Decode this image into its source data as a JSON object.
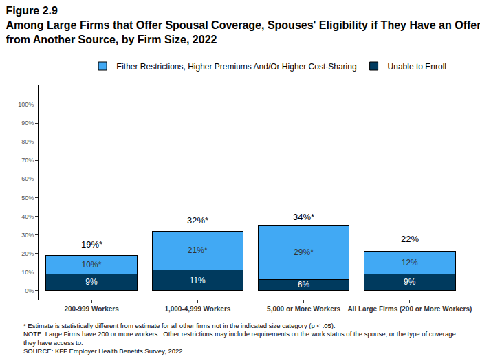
{
  "chart_data": {
    "type": "bar",
    "title": "Figure 2.9",
    "subtitle": [
      "Among Large Firms that Offer Spousal Coverage, Spouses' Eligibility if They Have an Offer",
      "from Another Source, by Firm Size, 2022"
    ],
    "categories": [
      "200-999 Workers",
      "1,000-4,999 Workers",
      "5,000 or More Workers",
      "All Large Firms (200 or More Workers)"
    ],
    "series": [
      {
        "name": "Unable to Enroll",
        "color": "#003a5e",
        "values": [
          9,
          11,
          6,
          9
        ],
        "value_labels": [
          "9%",
          "11%",
          "6%",
          "9%"
        ]
      },
      {
        "name": "Either Restrictions, Higher Premiums And/Or Higher Cost-Sharing",
        "color": "#41a9f4",
        "values": [
          10,
          21,
          29,
          12
        ],
        "value_labels": [
          "10%*",
          "21%*",
          "29%*",
          "12%"
        ]
      }
    ],
    "totals": [
      19,
      32,
      34,
      22
    ],
    "total_labels": [
      "19%*",
      "32%*",
      "34%*",
      "22%"
    ],
    "stacked": true,
    "data_labels": true,
    "grid": false,
    "legend": "top",
    "ylim": [
      -5,
      111
    ],
    "yticks": [
      {
        "value": 0,
        "label": "0%"
      },
      {
        "value": 10,
        "label": "10%"
      },
      {
        "value": 20,
        "label": "20%"
      },
      {
        "value": 30,
        "label": "30%"
      },
      {
        "value": 40,
        "label": "40%"
      },
      {
        "value": 50,
        "label": "50%"
      },
      {
        "value": 60,
        "label": "60%"
      },
      {
        "value": 70,
        "label": "70%"
      },
      {
        "value": 80,
        "label": "80%"
      },
      {
        "value": 90,
        "label": "90%"
      },
      {
        "value": 100,
        "label": "100%"
      }
    ],
    "notes": [
      "* Estimate is statistically different from estimate for all other firms not in the indicated size category (p < .05).",
      "NOTE: Large Firms have 200 or more workers.  Other restrictions may include requirements on the work status of the spouse, or the type of coverage",
      "they have access to.",
      "SOURCE: KFF Employer Health Benefits Survey, 2022"
    ]
  }
}
